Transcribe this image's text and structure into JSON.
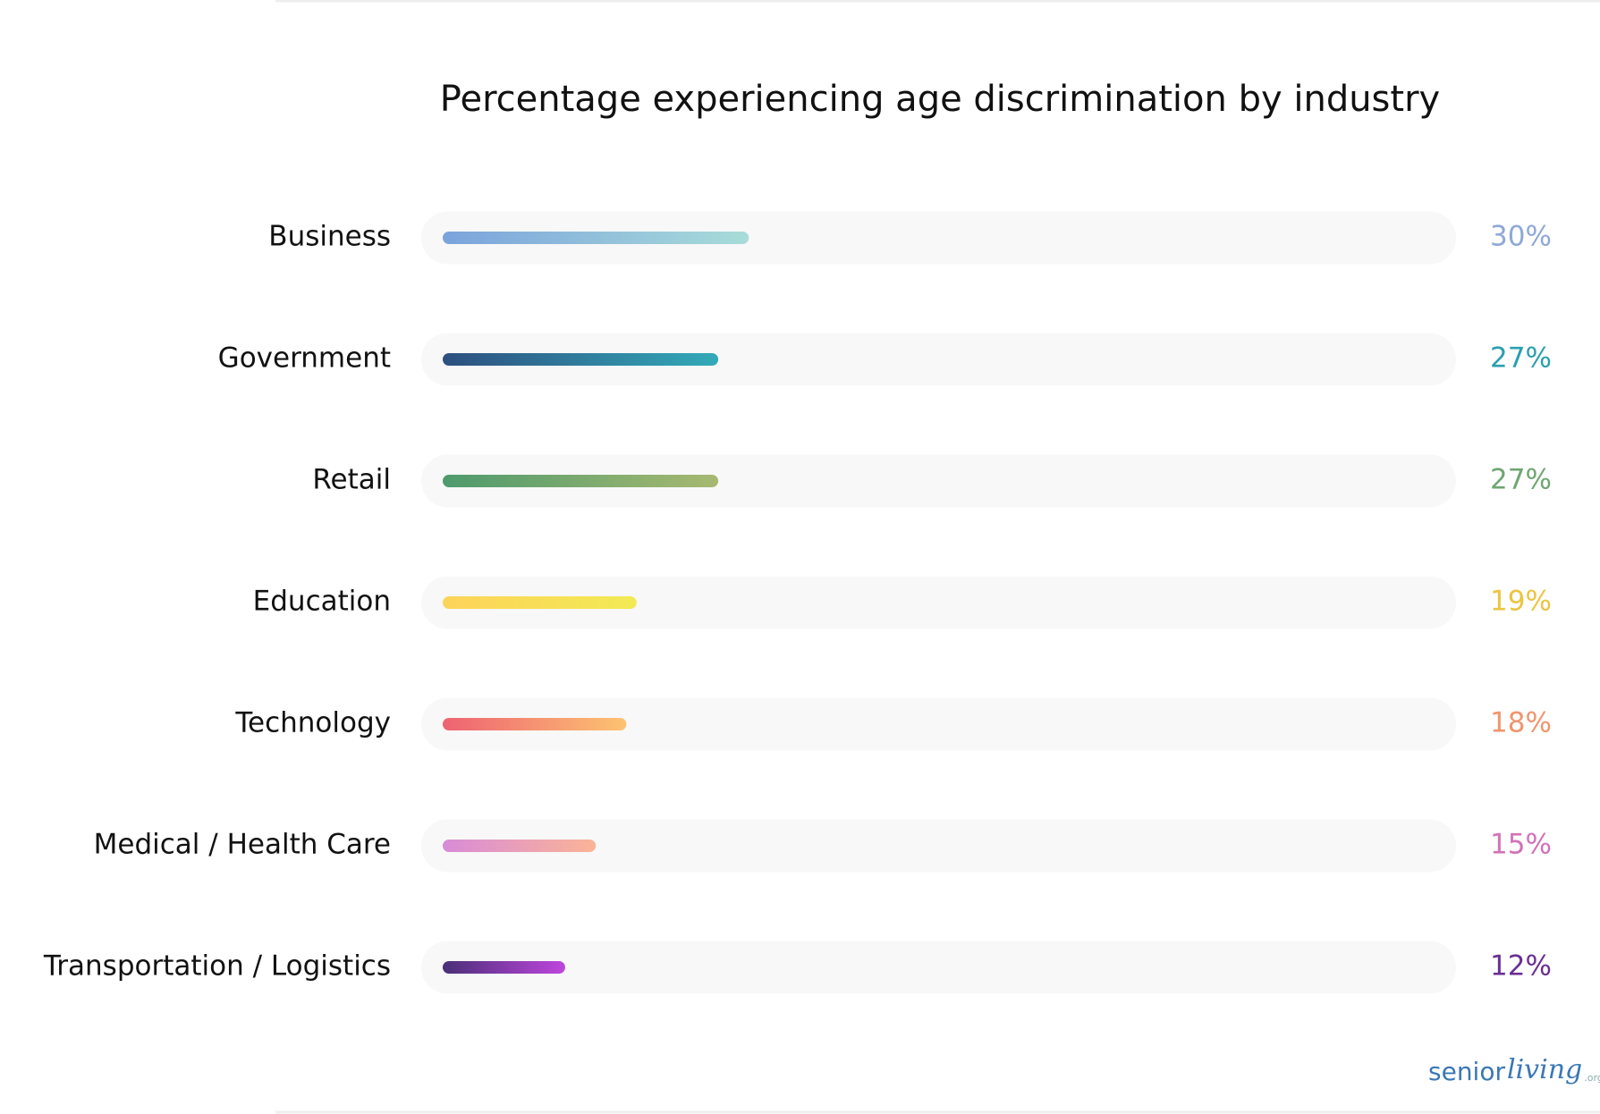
{
  "chart_data": {
    "type": "hbar",
    "title": "Percentage experiencing age discrimination by industry",
    "categories": [
      "Business",
      "Government",
      "Retail",
      "Education",
      "Technology",
      "Medical / Health Care",
      "Transportation / Logistics"
    ],
    "values": [
      30,
      27,
      27,
      19,
      18,
      15,
      12
    ],
    "value_labels": [
      "30%",
      "27%",
      "27%",
      "19%",
      "18%",
      "15%",
      "12%"
    ],
    "colors": [
      {
        "start": "#7ba3dc",
        "end": "#a8dcd9",
        "label": "#8fa9d6"
      },
      {
        "start": "#2d4f80",
        "end": "#33aab8",
        "label": "#2a9fb0"
      },
      {
        "start": "#4e9a6d",
        "end": "#a7b970",
        "label": "#6fa671"
      },
      {
        "start": "#fdd35a",
        "end": "#f2ea55",
        "label": "#ebc440"
      },
      {
        "start": "#ee6272",
        "end": "#fdc371",
        "label": "#f0956d"
      },
      {
        "start": "#d88bd8",
        "end": "#fbb497",
        "label": "#d172b8"
      },
      {
        "start": "#4a2f78",
        "end": "#be46dd",
        "label": "#6a2f93"
      }
    ],
    "xlim": [
      0,
      100
    ],
    "logo": [
      "senior",
      "living",
      ".org"
    ]
  }
}
